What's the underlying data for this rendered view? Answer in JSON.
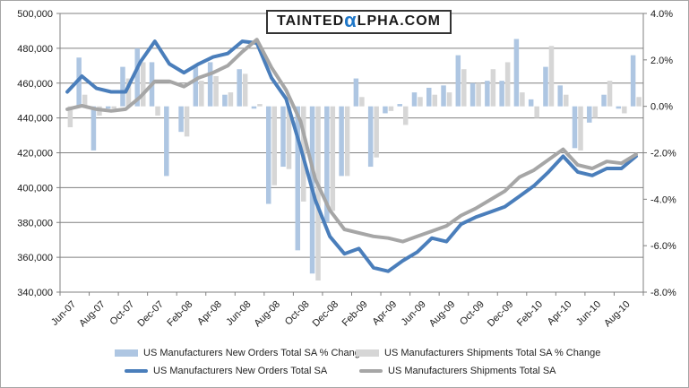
{
  "logo": {
    "prefix": "TAINTED",
    "alpha": "α",
    "suffix": "LPHA.COM"
  },
  "colors": {
    "new_orders_bar": "#aec6e2",
    "shipments_bar": "#d6d6d6",
    "new_orders_line": "#4a7ebb",
    "shipments_line": "#a6a6a6",
    "gridline": "#808080",
    "axis_text": "#1a1a1a",
    "plot_border": "#808080"
  },
  "chart_data": {
    "type": "bar",
    "subtype": "combo-bar-line-dual-axis",
    "grid": "horizontal-on",
    "legend_position": "bottom",
    "months": [
      "Jun-07",
      "Jul-07",
      "Aug-07",
      "Sep-07",
      "Oct-07",
      "Nov-07",
      "Dec-07",
      "Jan-08",
      "Feb-08",
      "Mar-08",
      "Apr-08",
      "May-08",
      "Jun-08",
      "Jul-08",
      "Aug-08",
      "Sep-08",
      "Oct-08",
      "Nov-08",
      "Dec-08",
      "Jan-09",
      "Feb-09",
      "Mar-09",
      "Apr-09",
      "May-09",
      "Jun-09",
      "Jul-09",
      "Aug-09",
      "Sep-09",
      "Oct-09",
      "Nov-09",
      "Dec-09",
      "Jan-10",
      "Feb-10",
      "Mar-10",
      "Apr-10",
      "May-10",
      "Jun-10",
      "Jul-10",
      "Aug-10",
      "Sep-10"
    ],
    "x_tick_labels": [
      "Jun-07",
      "Aug-07",
      "Oct-07",
      "Dec-07",
      "Feb-08",
      "Apr-08",
      "Jun-08",
      "Aug-08",
      "Oct-08",
      "Dec-08",
      "Feb-09",
      "Apr-09",
      "Jun-09",
      "Aug-09",
      "Oct-09",
      "Dec-09",
      "Feb-10",
      "Apr-10",
      "Jun-10",
      "Aug-10"
    ],
    "left_axis": {
      "min": 340000,
      "max": 500000,
      "step": 20000,
      "labels": [
        "500,000",
        "480,000",
        "460,000",
        "440,000",
        "420,000",
        "400,000",
        "380,000",
        "360,000",
        "340,000"
      ]
    },
    "right_axis": {
      "min": -8,
      "max": 4,
      "step": 2,
      "labels": [
        "4.0%",
        "2.0%",
        "0.0%",
        "-2.0%",
        "-4.0%",
        "-6.0%",
        "-8.0%"
      ]
    },
    "series": [
      {
        "name": "US Manufacturers New Orders Total SA % Change",
        "type": "bar",
        "axis": "right",
        "values": [
          0.0,
          2.1,
          -1.9,
          -0.1,
          1.7,
          2.5,
          1.9,
          -3.0,
          -1.1,
          1.7,
          1.9,
          0.5,
          1.6,
          -0.1,
          -4.2,
          -2.6,
          -6.2,
          -7.2,
          -5.0,
          -3.0,
          1.2,
          -2.6,
          -0.3,
          0.1,
          0.6,
          0.8,
          0.9,
          2.2,
          1.0,
          1.1,
          1.1,
          2.9,
          0.3,
          1.7,
          0.9,
          -1.8,
          -0.7,
          0.5,
          -0.1,
          2.2
        ]
      },
      {
        "name": "US Manufacturers Shipments Total SA % Change",
        "type": "bar",
        "axis": "right",
        "values": [
          -0.9,
          0.5,
          -0.4,
          -0.1,
          1.2,
          1.9,
          -0.4,
          0.0,
          -1.3,
          1.1,
          1.3,
          0.6,
          1.4,
          0.1,
          -3.4,
          -2.7,
          -4.1,
          -7.5,
          -4.5,
          -3.0,
          0.4,
          -2.2,
          -0.2,
          -0.8,
          0.4,
          0.5,
          0.6,
          1.6,
          1.0,
          1.6,
          1.9,
          0.6,
          -0.5,
          2.6,
          0.5,
          -1.9,
          -0.5,
          1.1,
          -0.3,
          0.4
        ]
      },
      {
        "name": "US Manufacturers New Orders Total SA",
        "type": "line",
        "axis": "left",
        "values": [
          455000,
          464000,
          457000,
          455000,
          455000,
          472000,
          484000,
          471000,
          466000,
          471000,
          475000,
          477000,
          484000,
          483000,
          463000,
          451000,
          423000,
          393000,
          372000,
          362000,
          365000,
          354000,
          352000,
          358000,
          363000,
          371000,
          369000,
          379000,
          383000,
          386000,
          389000,
          395000,
          401000,
          409000,
          418000,
          409000,
          407000,
          411000,
          411000,
          418000
        ]
      },
      {
        "name": "US Manufacturers Shipments Total SA",
        "type": "line",
        "axis": "left",
        "values": [
          445000,
          447000,
          445000,
          444000,
          445000,
          452000,
          461000,
          461000,
          458000,
          463000,
          466000,
          470000,
          478000,
          485000,
          469000,
          456000,
          438000,
          405000,
          387000,
          376000,
          374000,
          372000,
          371000,
          369000,
          372000,
          375000,
          378000,
          384000,
          388000,
          393000,
          398000,
          406000,
          410000,
          416000,
          422000,
          413000,
          411000,
          415000,
          414000,
          419000
        ]
      }
    ]
  }
}
